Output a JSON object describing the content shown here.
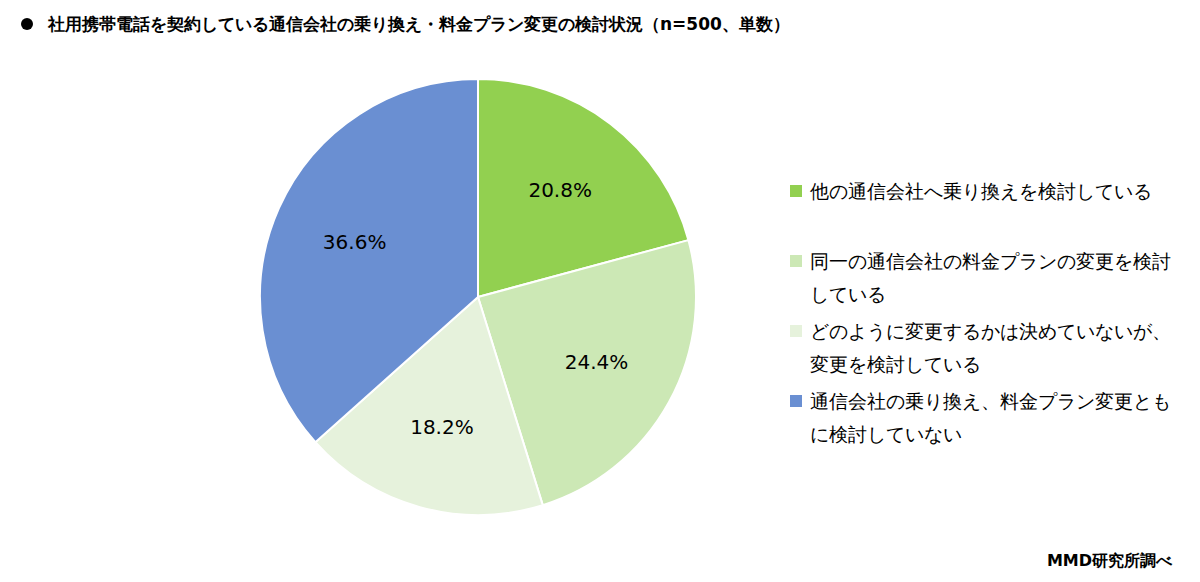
{
  "chart_data": {
    "type": "pie",
    "title": "社用携帯電話を契約している通信会社の乗り換え・料金プラン変更の検討状況（n=500、単数）",
    "categories": [
      "他の通信会社へ乗り換えを検討している",
      "同一の通信会社の料金プランの変更を検討している",
      "どのように変更するかは決めていないが、変更を検討している",
      "通信会社の乗り換え、料金プラン変更ともに検討していない"
    ],
    "values": [
      20.8,
      24.4,
      18.2,
      36.6
    ],
    "value_labels": [
      "20.8%",
      "24.4%",
      "18.2%",
      "36.6%"
    ],
    "colors": [
      "#92d050",
      "#cce8b5",
      "#e6f2dc",
      "#6a8fd2"
    ],
    "data_labels": true,
    "legend": "right",
    "source": "MMD研究所調べ"
  }
}
